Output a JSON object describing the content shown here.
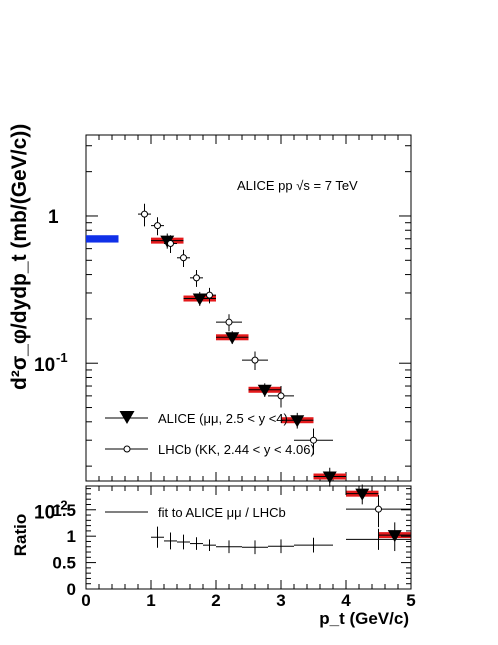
{
  "chart_data": [
    {
      "type": "scatter",
      "panel": "top",
      "annotation": "ALICE pp  √s = 7 TeV",
      "ylabel": "d²σ_φ/dydp_t (mb/(GeV/c))",
      "xlim": [
        0,
        5
      ],
      "ylim_log10": [
        -1.8,
        0.55
      ],
      "y_scale": "log",
      "y_tick_labels": [
        {
          "value": 1,
          "label": "1"
        },
        {
          "value": 0.1,
          "label": "10",
          "exp": "-1"
        },
        {
          "value": 0.01,
          "label": "10",
          "exp": "-2"
        }
      ],
      "legend_position": "bottom-left",
      "series": [
        {
          "name": "ALICE (μμ, 2.5 < y <4)",
          "marker": "filled-down-triangle",
          "color": "#000000",
          "syst_color": "#e41a1c",
          "points": [
            {
              "x": 1.25,
              "xerr": 0.25,
              "y": 0.68,
              "yerr": 0.08
            },
            {
              "x": 1.75,
              "xerr": 0.25,
              "y": 0.275,
              "yerr": 0.03
            },
            {
              "x": 2.25,
              "xerr": 0.25,
              "y": 0.15,
              "yerr": 0.015
            },
            {
              "x": 2.75,
              "xerr": 0.25,
              "y": 0.066,
              "yerr": 0.007
            },
            {
              "x": 3.25,
              "xerr": 0.25,
              "y": 0.041,
              "yerr": 0.005
            },
            {
              "x": 3.75,
              "xerr": 0.25,
              "y": 0.017,
              "yerr": 0.0025
            },
            {
              "x": 4.25,
              "xerr": 0.25,
              "y": 0.013,
              "yerr": 0.002
            },
            {
              "x": 4.75,
              "xerr": 0.25,
              "y": 0.0068,
              "yerr": 0.0015
            }
          ]
        },
        {
          "name": "LHCb (KK, 2.44 < y < 4.06)",
          "marker": "open-circle",
          "color": "#000000",
          "points": [
            {
              "x": 0.9,
              "xerr": 0.1,
              "y": 1.03,
              "yerr": 0.18
            },
            {
              "x": 1.1,
              "xerr": 0.1,
              "y": 0.86,
              "yerr": 0.12
            },
            {
              "x": 1.3,
              "xerr": 0.1,
              "y": 0.65,
              "yerr": 0.09
            },
            {
              "x": 1.5,
              "xerr": 0.1,
              "y": 0.52,
              "yerr": 0.07
            },
            {
              "x": 1.7,
              "xerr": 0.1,
              "y": 0.38,
              "yerr": 0.05
            },
            {
              "x": 1.9,
              "xerr": 0.1,
              "y": 0.29,
              "yerr": 0.035
            },
            {
              "x": 2.2,
              "xerr": 0.2,
              "y": 0.19,
              "yerr": 0.025
            },
            {
              "x": 2.6,
              "xerr": 0.2,
              "y": 0.105,
              "yerr": 0.015
            },
            {
              "x": 3.0,
              "xerr": 0.2,
              "y": 0.06,
              "yerr": 0.01
            },
            {
              "x": 3.5,
              "xerr": 0.3,
              "y": 0.03,
              "yerr": 0.006
            },
            {
              "x": 4.5,
              "xerr": 0.5,
              "y": 0.0102,
              "yerr": 0.0025
            }
          ]
        },
        {
          "name": "",
          "marker": "band",
          "color": "#1030e8",
          "points": [
            {
              "x": 0.25,
              "xerr": 0.25,
              "y": 0.7,
              "yerr": 0.04
            }
          ]
        }
      ]
    },
    {
      "type": "scatter",
      "panel": "bottom",
      "ylabel": "Ratio",
      "xlabel": "p_t (GeV/c)",
      "xlim": [
        0,
        5
      ],
      "ylim": [
        0,
        1.95
      ],
      "x_ticks": [
        "0",
        "1",
        "2",
        "3",
        "4",
        "5"
      ],
      "y_ticks": [
        "0",
        "0.5",
        "1",
        "1.5"
      ],
      "series": [
        {
          "name": "fit to ALICE μμ / LHCb",
          "marker": "none",
          "color": "#000000",
          "points": [
            {
              "x": 1.1,
              "xerr": 0.1,
              "y": 0.98,
              "yerr": 0.2
            },
            {
              "x": 1.3,
              "xerr": 0.1,
              "y": 0.91,
              "yerr": 0.16
            },
            {
              "x": 1.5,
              "xerr": 0.1,
              "y": 0.89,
              "yerr": 0.14
            },
            {
              "x": 1.7,
              "xerr": 0.1,
              "y": 0.86,
              "yerr": 0.12
            },
            {
              "x": 1.9,
              "xerr": 0.1,
              "y": 0.83,
              "yerr": 0.11
            },
            {
              "x": 2.2,
              "xerr": 0.2,
              "y": 0.8,
              "yerr": 0.12
            },
            {
              "x": 2.6,
              "xerr": 0.2,
              "y": 0.79,
              "yerr": 0.13
            },
            {
              "x": 3.0,
              "xerr": 0.2,
              "y": 0.81,
              "yerr": 0.13
            },
            {
              "x": 3.5,
              "xerr": 0.3,
              "y": 0.83,
              "yerr": 0.14
            },
            {
              "x": 4.5,
              "xerr": 0.5,
              "y": 0.94,
              "yerr": 0.2
            }
          ]
        }
      ]
    }
  ]
}
